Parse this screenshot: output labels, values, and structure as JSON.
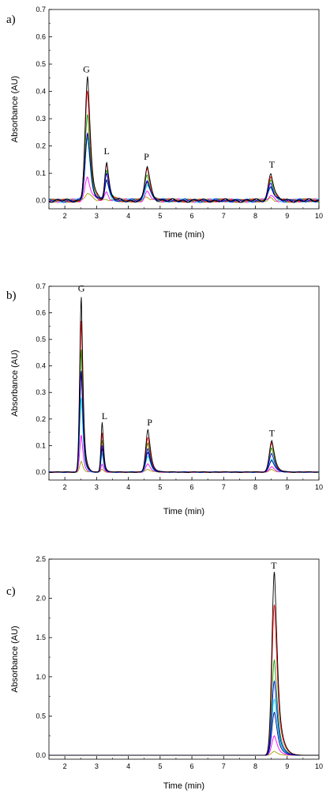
{
  "colors": [
    "#000000",
    "#ff0000",
    "#00a000",
    "#0000ff",
    "#00e0e0",
    "#ff00ff",
    "#a0a000",
    "#000080"
  ],
  "chart_data": [
    {
      "type": "line",
      "panel_label": "a)",
      "xlabel": "Time (min)",
      "ylabel": "Absorbance (AU)",
      "xlim": [
        1.5,
        10
      ],
      "ylim": [
        -0.03,
        0.7
      ],
      "xticks": [
        2,
        3,
        4,
        5,
        6,
        7,
        8,
        9,
        10
      ],
      "yticks": [
        0.0,
        0.1,
        0.2,
        0.3,
        0.4,
        0.5,
        0.6,
        0.7
      ],
      "ytick_labels": [
        "0.0",
        "0.1",
        "0.2",
        "0.3",
        "0.4",
        "0.5",
        "0.6",
        "0.7"
      ],
      "baseline_noise": 0.007,
      "annotations": [
        {
          "text": "G",
          "x": 2.68,
          "y": 0.47
        },
        {
          "text": "L",
          "x": 3.32,
          "y": 0.17
        },
        {
          "text": "P",
          "x": 4.57,
          "y": 0.15
        },
        {
          "text": "T",
          "x": 8.52,
          "y": 0.12
        }
      ],
      "peaks": [
        {
          "center": 2.72,
          "width": 0.08,
          "tail": 0.13,
          "heights": [
            0.45,
            0.4,
            0.32,
            0.25,
            0.23,
            0.09,
            0.03,
            0.24
          ]
        },
        {
          "center": 3.32,
          "width": 0.06,
          "tail": 0.12,
          "heights": [
            0.14,
            0.13,
            0.11,
            0.1,
            0.07,
            0.03,
            0.01,
            0.08
          ]
        },
        {
          "center": 4.6,
          "width": 0.08,
          "tail": 0.14,
          "heights": [
            0.125,
            0.115,
            0.095,
            0.08,
            0.06,
            0.03,
            0.01,
            0.07
          ]
        },
        {
          "center": 8.49,
          "width": 0.08,
          "tail": 0.13,
          "heights": [
            0.105,
            0.09,
            0.07,
            0.06,
            0.05,
            0.02,
            0.01,
            0.055
          ]
        }
      ]
    },
    {
      "type": "line",
      "panel_label": "b)",
      "xlabel": "Time (min)",
      "ylabel": "Absorbance (AU)",
      "xlim": [
        1.5,
        10
      ],
      "ylim": [
        -0.03,
        0.7
      ],
      "xticks": [
        2,
        3,
        4,
        5,
        6,
        7,
        8,
        9,
        10
      ],
      "yticks": [
        0.0,
        0.1,
        0.2,
        0.3,
        0.4,
        0.5,
        0.6,
        0.7
      ],
      "ytick_labels": [
        "0.0",
        "0.1",
        "0.2",
        "0.3",
        "0.4",
        "0.5",
        "0.6",
        "0.7"
      ],
      "baseline_noise": 0.0015,
      "annotations": [
        {
          "text": "G",
          "x": 2.52,
          "y": 0.68
        },
        {
          "text": "L",
          "x": 3.25,
          "y": 0.2
        },
        {
          "text": "P",
          "x": 4.67,
          "y": 0.175
        },
        {
          "text": "T",
          "x": 8.52,
          "y": 0.135
        }
      ],
      "peaks": [
        {
          "center": 2.52,
          "width": 0.05,
          "tail": 0.08,
          "heights": [
            0.66,
            0.57,
            0.46,
            0.38,
            0.28,
            0.14,
            0.04,
            0.38
          ]
        },
        {
          "center": 3.18,
          "width": 0.04,
          "tail": 0.06,
          "heights": [
            0.19,
            0.15,
            0.12,
            0.1,
            0.07,
            0.03,
            0.01,
            0.09
          ]
        },
        {
          "center": 4.62,
          "width": 0.07,
          "tail": 0.12,
          "heights": [
            0.16,
            0.13,
            0.11,
            0.09,
            0.06,
            0.03,
            0.01,
            0.075
          ]
        },
        {
          "center": 8.52,
          "width": 0.08,
          "tail": 0.13,
          "heights": [
            0.12,
            0.11,
            0.09,
            0.07,
            0.05,
            0.02,
            0.01,
            0.045
          ]
        }
      ]
    },
    {
      "type": "line",
      "panel_label": "c)",
      "xlabel": "Time (min)",
      "ylabel": "Absorbance (AU)",
      "xlim": [
        1.5,
        10
      ],
      "ylim": [
        -0.05,
        2.5
      ],
      "xticks": [
        2,
        3,
        4,
        5,
        6,
        7,
        8,
        9,
        10
      ],
      "yticks": [
        0.0,
        0.5,
        1.0,
        1.5,
        2.0,
        2.5
      ],
      "ytick_labels": [
        "0.0",
        "0.5",
        "1.0",
        "1.5",
        "2.0",
        "2.5"
      ],
      "baseline_noise": 0.0,
      "annotations": [
        {
          "text": "T",
          "x": 8.58,
          "y": 2.38
        }
      ],
      "peaks": [
        {
          "center": 8.6,
          "width": 0.08,
          "tail": 0.16,
          "heights": [
            2.35,
            1.93,
            1.22,
            0.95,
            0.72,
            0.25,
            0.05,
            0.55
          ]
        }
      ]
    }
  ]
}
